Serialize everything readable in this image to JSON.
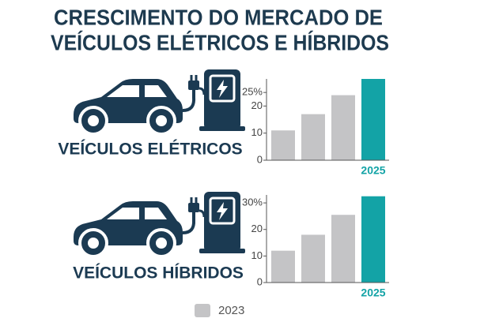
{
  "title": [
    "CRESCIMENTO DO MERCADO DE",
    "VEÍCULOS ELÉTRICOS E HÍBRIDOS"
  ],
  "chart_data": [
    {
      "type": "bar",
      "title": "VEÍCULOS ELÉTRICOS",
      "categories": [
        null,
        null,
        null,
        "2025"
      ],
      "values": [
        11,
        17,
        24,
        30
      ],
      "colors": [
        "#c4c4c6",
        "#c4c4c6",
        "#c4c4c6",
        "#13a3a6"
      ],
      "ylim": [
        0,
        30
      ],
      "yticks": [
        0,
        10,
        20,
        {
          "value": 25,
          "label": "25%"
        }
      ]
    },
    {
      "type": "bar",
      "title": "VEÍCULOS HÍBRIDOS",
      "categories": [
        null,
        null,
        null,
        "2025"
      ],
      "values": [
        12,
        18,
        25.5,
        32.5
      ],
      "colors": [
        "#c4c4c6",
        "#c4c4c6",
        "#c4c4c6",
        "#13a3a6"
      ],
      "ylim": [
        0,
        33
      ],
      "yticks": [
        0,
        10,
        20,
        {
          "value": 30,
          "label": "30%"
        }
      ]
    }
  ],
  "legend": {
    "label": "2023",
    "color": "#c4c4c6"
  }
}
